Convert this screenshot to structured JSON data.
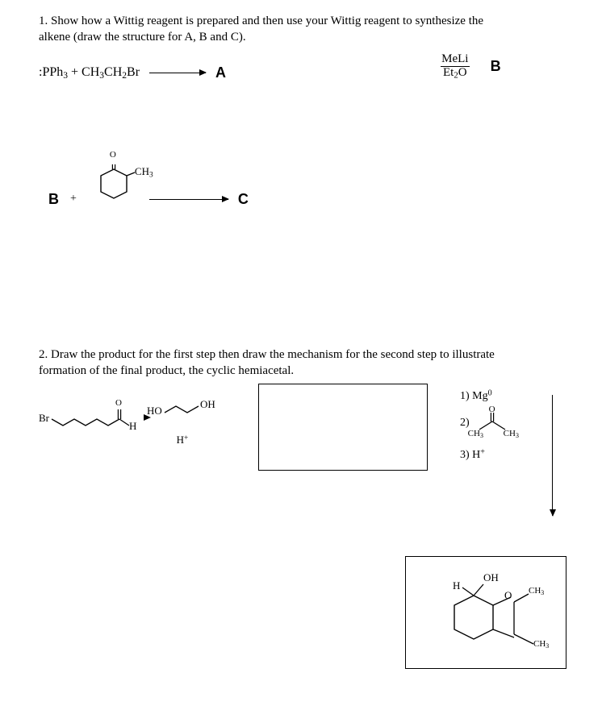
{
  "q1": {
    "prompt_line1": "1.  Show how a Wittig reagent is prepared and then use your Wittig reagent to synthesize the",
    "prompt_line2": "alkene (draw the structure for A, B and C).",
    "r1_left": ":PPh₃ + CH₃CH₂Br",
    "A": "A",
    "MeLi": "MeLi",
    "Et2O": "Et₂O",
    "B": "B",
    "r3_B": "B",
    "plus": "+",
    "CH3_sub": "CH₃",
    "C": "C",
    "ketone_O": "O"
  },
  "q2": {
    "prompt_line1": "2. Draw the product for the first step then draw the mechanism for the second step to illustrate",
    "prompt_line2": "formation of the final product, the cyclic hemiacetal.",
    "Br": "Br",
    "O": "O",
    "H": "H",
    "HO": "HO",
    "OH": "OH",
    "Hplus": "H⁺",
    "step1": "1) Mg⁰",
    "step2": "2)",
    "step2_l": "CH₃",
    "step2_r": "CH₃",
    "step2_O": "O",
    "step3": "3) H⁺",
    "prod_OH": "OH",
    "prod_H": "H",
    "prod_O": "O",
    "prod_CH3a": "CH₃",
    "prod_CH3b": "CH₃"
  }
}
